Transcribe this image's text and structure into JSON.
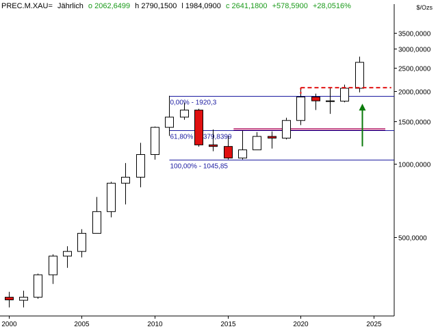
{
  "header": {
    "symbol": "PREC.M.XAU=",
    "period": "Jährlich",
    "open": "o 2062,6499",
    "high": "h 2790,1500",
    "low": "l 1984,0900",
    "close": "c 2641,1800",
    "change": "+578,5900",
    "change_pct": "+28,0516%"
  },
  "unit_label": "$/Ozs",
  "colors": {
    "up": "#ffffff",
    "down": "#e01010",
    "fib": "#1a1aa0",
    "fib_mid": "#b01060",
    "resistance": "#e01010",
    "arrow": "#0a7a0a"
  },
  "chart_data": {
    "type": "candlestick",
    "scale": "log",
    "ylim": [
      235,
      4200
    ],
    "xlim": [
      1999.4,
      2026.4
    ],
    "y_ticks": [
      {
        "value": 3500,
        "label": "3500,0000"
      },
      {
        "value": 3000,
        "label": "3000,0000"
      },
      {
        "value": 2500,
        "label": "2500,0000"
      },
      {
        "value": 2000,
        "label": "2000,0000"
      },
      {
        "value": 1500,
        "label": "1500,0000"
      },
      {
        "value": 1000,
        "label": "1000,0000"
      },
      {
        "value": 500,
        "label": "500,0000"
      }
    ],
    "x_ticks": [
      {
        "value": 2000,
        "label": "2000"
      },
      {
        "value": 2005,
        "label": "2005"
      },
      {
        "value": 2010,
        "label": "2010"
      },
      {
        "value": 2015,
        "label": "2015"
      },
      {
        "value": 2020,
        "label": "2020"
      },
      {
        "value": 2025,
        "label": "2025"
      }
    ],
    "candles": [
      {
        "year": 1999,
        "open": 288,
        "high": 326,
        "low": 253,
        "close": 273
      },
      {
        "year": 2000,
        "open": 281,
        "high": 296,
        "low": 255,
        "close": 274
      },
      {
        "year": 2001,
        "open": 273,
        "high": 299,
        "low": 255,
        "close": 281
      },
      {
        "year": 2002,
        "open": 281,
        "high": 352,
        "low": 277,
        "close": 348
      },
      {
        "year": 2003,
        "open": 348,
        "high": 423,
        "low": 319,
        "close": 416
      },
      {
        "year": 2004,
        "open": 416,
        "high": 457,
        "low": 372,
        "close": 435
      },
      {
        "year": 2005,
        "open": 435,
        "high": 538,
        "low": 411,
        "close": 517
      },
      {
        "year": 2006,
        "open": 517,
        "high": 731,
        "low": 527,
        "close": 636
      },
      {
        "year": 2007,
        "open": 636,
        "high": 845,
        "low": 602,
        "close": 834
      },
      {
        "year": 2008,
        "open": 834,
        "high": 1011,
        "low": 681,
        "close": 883
      },
      {
        "year": 2009,
        "open": 883,
        "high": 1226,
        "low": 802,
        "close": 1096
      },
      {
        "year": 2010,
        "open": 1096,
        "high": 1431,
        "low": 1044,
        "close": 1421
      },
      {
        "year": 2011,
        "open": 1421,
        "high": 1920,
        "low": 1309,
        "close": 1566
      },
      {
        "year": 2012,
        "open": 1566,
        "high": 1796,
        "low": 1527,
        "close": 1675
      },
      {
        "year": 2013,
        "open": 1675,
        "high": 1696,
        "low": 1181,
        "close": 1202
      },
      {
        "year": 2014,
        "open": 1202,
        "high": 1392,
        "low": 1131,
        "close": 1184
      },
      {
        "year": 2015,
        "open": 1184,
        "high": 1307,
        "low": 1046,
        "close": 1060
      },
      {
        "year": 2016,
        "open": 1060,
        "high": 1375,
        "low": 1046,
        "close": 1146
      },
      {
        "year": 2017,
        "open": 1146,
        "high": 1358,
        "low": 1146,
        "close": 1303
      },
      {
        "year": 2018,
        "open": 1303,
        "high": 1366,
        "low": 1160,
        "close": 1282
      },
      {
        "year": 2019,
        "open": 1282,
        "high": 1557,
        "low": 1266,
        "close": 1517
      },
      {
        "year": 2020,
        "open": 1517,
        "high": 2075,
        "low": 1451,
        "close": 1898
      },
      {
        "year": 2021,
        "open": 1898,
        "high": 1959,
        "low": 1676,
        "close": 1829
      },
      {
        "year": 2022,
        "open": 1829,
        "high": 2070,
        "low": 1615,
        "close": 1824
      },
      {
        "year": 2023,
        "open": 1824,
        "high": 2135,
        "low": 1804,
        "close": 2062
      },
      {
        "year": 2024,
        "open": 2062,
        "high": 2790,
        "low": 1984,
        "close": 2641
      }
    ],
    "fibonacci": {
      "start_year": 2011,
      "end_year": 2027.5,
      "levels": [
        {
          "value": 1920.3,
          "label": "0,00% - 1920,3"
        },
        {
          "value": 1379.8399,
          "label": "61,80% - 1379,8399"
        },
        {
          "value": 1045.85,
          "label": "100,00% - 1045,85"
        }
      ],
      "mid_lines": [
        1395,
        1405
      ]
    },
    "resistance": {
      "value": 2075,
      "start_year": 2020,
      "end_year": 2026.2
    },
    "arrow": {
      "year": 2024.2,
      "from": 1185,
      "to": 1780
    }
  }
}
